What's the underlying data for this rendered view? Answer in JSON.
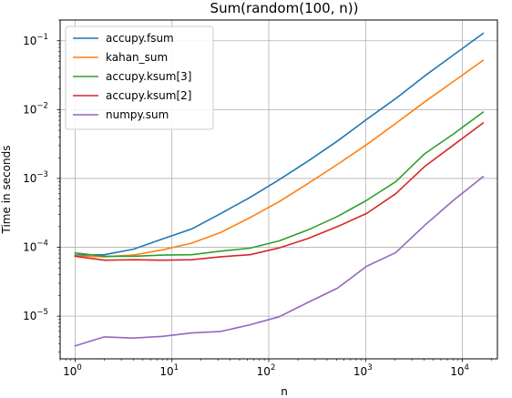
{
  "chart_data": {
    "type": "line",
    "title": "Sum(random(100, n))",
    "xlabel": "n",
    "ylabel": "Time in seconds",
    "xscale": "log",
    "yscale": "log",
    "xlim": [
      0.7,
      23000
    ],
    "ylim": [
      2.4e-06,
      0.2
    ],
    "grid": true,
    "legend_position": "top-left",
    "x": [
      1,
      2,
      4,
      8,
      16,
      32,
      64,
      128,
      256,
      512,
      1024,
      2048,
      4096,
      8192,
      16384
    ],
    "x_ticks": [
      {
        "value": 1,
        "base": "10",
        "exp": "0"
      },
      {
        "value": 10,
        "base": "10",
        "exp": "1"
      },
      {
        "value": 100,
        "base": "10",
        "exp": "2"
      },
      {
        "value": 1000,
        "base": "10",
        "exp": "3"
      },
      {
        "value": 10000,
        "base": "10",
        "exp": "4"
      }
    ],
    "y_ticks": [
      {
        "value": 1e-05,
        "base": "10",
        "exp": "−5"
      },
      {
        "value": 0.0001,
        "base": "10",
        "exp": "−4"
      },
      {
        "value": 0.001,
        "base": "10",
        "exp": "−3"
      },
      {
        "value": 0.01,
        "base": "10",
        "exp": "−2"
      },
      {
        "value": 0.1,
        "base": "10",
        "exp": "−1"
      }
    ],
    "series": [
      {
        "name": "accupy.fsum",
        "color": "#1f77b4",
        "values": [
          7.7e-05,
          7.8e-05,
          9.4e-05,
          0.000132,
          0.000185,
          0.00031,
          0.00053,
          0.00096,
          0.0018,
          0.0035,
          0.0072,
          0.0145,
          0.031,
          0.063,
          0.128
        ]
      },
      {
        "name": "kahan_sum",
        "color": "#ff7f0e",
        "values": [
          7.5e-05,
          7.3e-05,
          7.7e-05,
          9.2e-05,
          0.000115,
          0.000165,
          0.00027,
          0.00046,
          0.00085,
          0.0016,
          0.0031,
          0.0063,
          0.013,
          0.026,
          0.052
        ]
      },
      {
        "name": "accupy.ksum[3]",
        "color": "#2ca02c",
        "values": [
          8.3e-05,
          7.4e-05,
          7.4e-05,
          7.7e-05,
          7.8e-05,
          8.8e-05,
          9.7e-05,
          0.000124,
          0.00018,
          0.00028,
          0.00048,
          0.0009,
          0.0023,
          0.0045,
          0.0092
        ]
      },
      {
        "name": "accupy.ksum[2]",
        "color": "#d62728",
        "values": [
          7.4e-05,
          6.5e-05,
          6.6e-05,
          6.5e-05,
          6.6e-05,
          7.3e-05,
          7.8e-05,
          9.8e-05,
          0.000135,
          0.0002,
          0.00031,
          0.0006,
          0.0015,
          0.0031,
          0.0064
        ]
      },
      {
        "name": "numpy.sum",
        "color": "#9467bd",
        "values": [
          3.7e-06,
          5e-06,
          4.8e-06,
          5.1e-06,
          5.7e-06,
          6e-06,
          7.5e-06,
          9.8e-06,
          1.59e-05,
          2.55e-05,
          5.3e-05,
          8.4e-05,
          0.00021,
          0.00049,
          0.00106
        ]
      }
    ]
  }
}
